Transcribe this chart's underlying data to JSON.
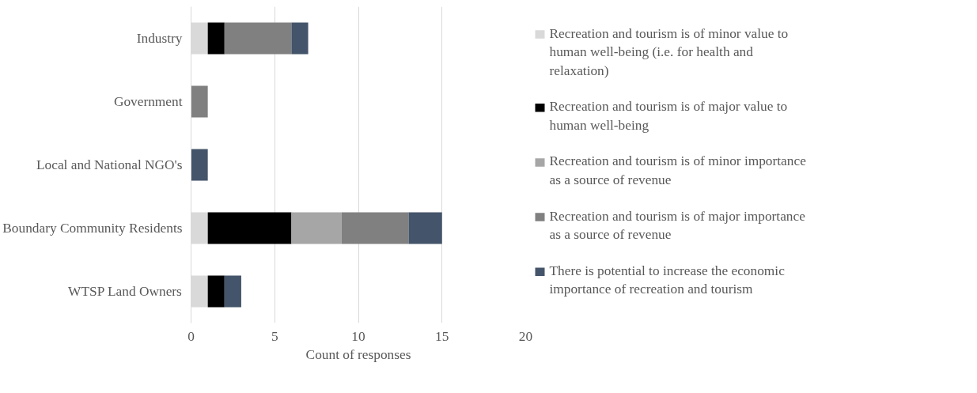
{
  "chart_data": {
    "type": "bar",
    "orientation": "horizontal",
    "stacked": true,
    "xlabel": "Count of responses",
    "categories": [
      "Industry",
      "Government",
      "Local and National NGO's",
      "Boundary Community Residents",
      "WTSP Land Owners"
    ],
    "series": [
      {
        "name": "Recreation and tourism is of minor value to human well-being (i.e. for health and relaxation)",
        "color": "#d9d9d9",
        "values": [
          1,
          0,
          0,
          1,
          1
        ]
      },
      {
        "name": "Recreation and tourism is of major value to human well-being",
        "color": "#000000",
        "values": [
          1,
          0,
          0,
          5,
          1
        ]
      },
      {
        "name": "Recreation and tourism is of minor importance as a source of revenue",
        "color": "#a6a6a6",
        "values": [
          0,
          0,
          0,
          3,
          0
        ]
      },
      {
        "name": "Recreation and tourism is of major importance as a source of revenue",
        "color": "#808080",
        "values": [
          4,
          1,
          0,
          4,
          0
        ]
      },
      {
        "name": "There is potential to increase the economic importance of recreation and tourism",
        "color": "#44546a",
        "values": [
          1,
          0,
          1,
          2,
          1
        ]
      }
    ],
    "xlim": [
      0,
      20
    ],
    "xticks": [
      0,
      5,
      10,
      15,
      20
    ],
    "grid": "x",
    "legend": "right"
  }
}
